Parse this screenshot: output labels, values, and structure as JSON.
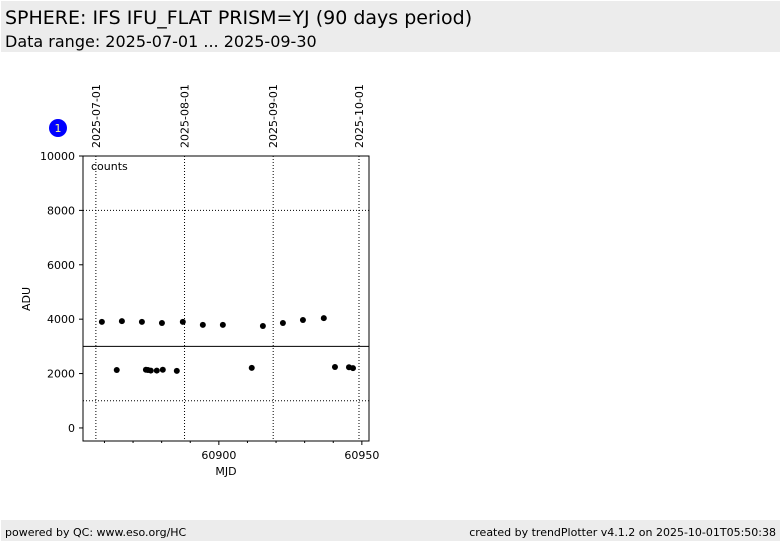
{
  "header": {
    "title": "SPHERE: IFS IFU_FLAT PRISM=YJ (90 days period)",
    "subtitle": "Data range: 2025-07-01 ... 2025-09-30"
  },
  "footer": {
    "left": "powered by QC: www.eso.org/HC",
    "right": "created by trendPlotter v4.1.2 on 2025-10-01T05:50:38"
  },
  "badge": {
    "label": "1",
    "color": "#0000ff"
  },
  "chart_data": {
    "type": "scatter",
    "xlabel": "MJD",
    "ylabel": "ADU",
    "annotation": "counts",
    "xlim": [
      60852.5,
      60952.5
    ],
    "ylim": [
      -480,
      10000
    ],
    "xticks": [
      60900,
      60950
    ],
    "yticks": [
      0,
      2000,
      4000,
      6000,
      8000,
      10000
    ],
    "top_axis": {
      "labels": [
        "2025-07-01",
        "2025-08-01",
        "2025-09-01",
        "2025-10-01"
      ],
      "mjd": [
        60857,
        60888,
        60919,
        60949
      ]
    },
    "reference_lines": {
      "solid": [
        3000
      ],
      "dotted": [
        1000,
        8000
      ]
    },
    "grid": "vertical dotted at month starts",
    "marker_color": "#000000",
    "x": [
      60859.1,
      60866.1,
      60873.1,
      60880.1,
      60887.4,
      60894.4,
      60901.4,
      60915.4,
      60922.4,
      60929.4,
      60936.7,
      60864.3,
      60874.5,
      60875.2,
      60876.2,
      60878.3,
      60880.4,
      60885.3,
      60911.5,
      60940.6,
      60945.5,
      60946.9
    ],
    "y": [
      3900,
      3930,
      3900,
      3860,
      3900,
      3790,
      3790,
      3750,
      3860,
      3970,
      4040,
      2130,
      2140,
      2130,
      2110,
      2110,
      2140,
      2100,
      2210,
      2240,
      2230,
      2200
    ]
  }
}
